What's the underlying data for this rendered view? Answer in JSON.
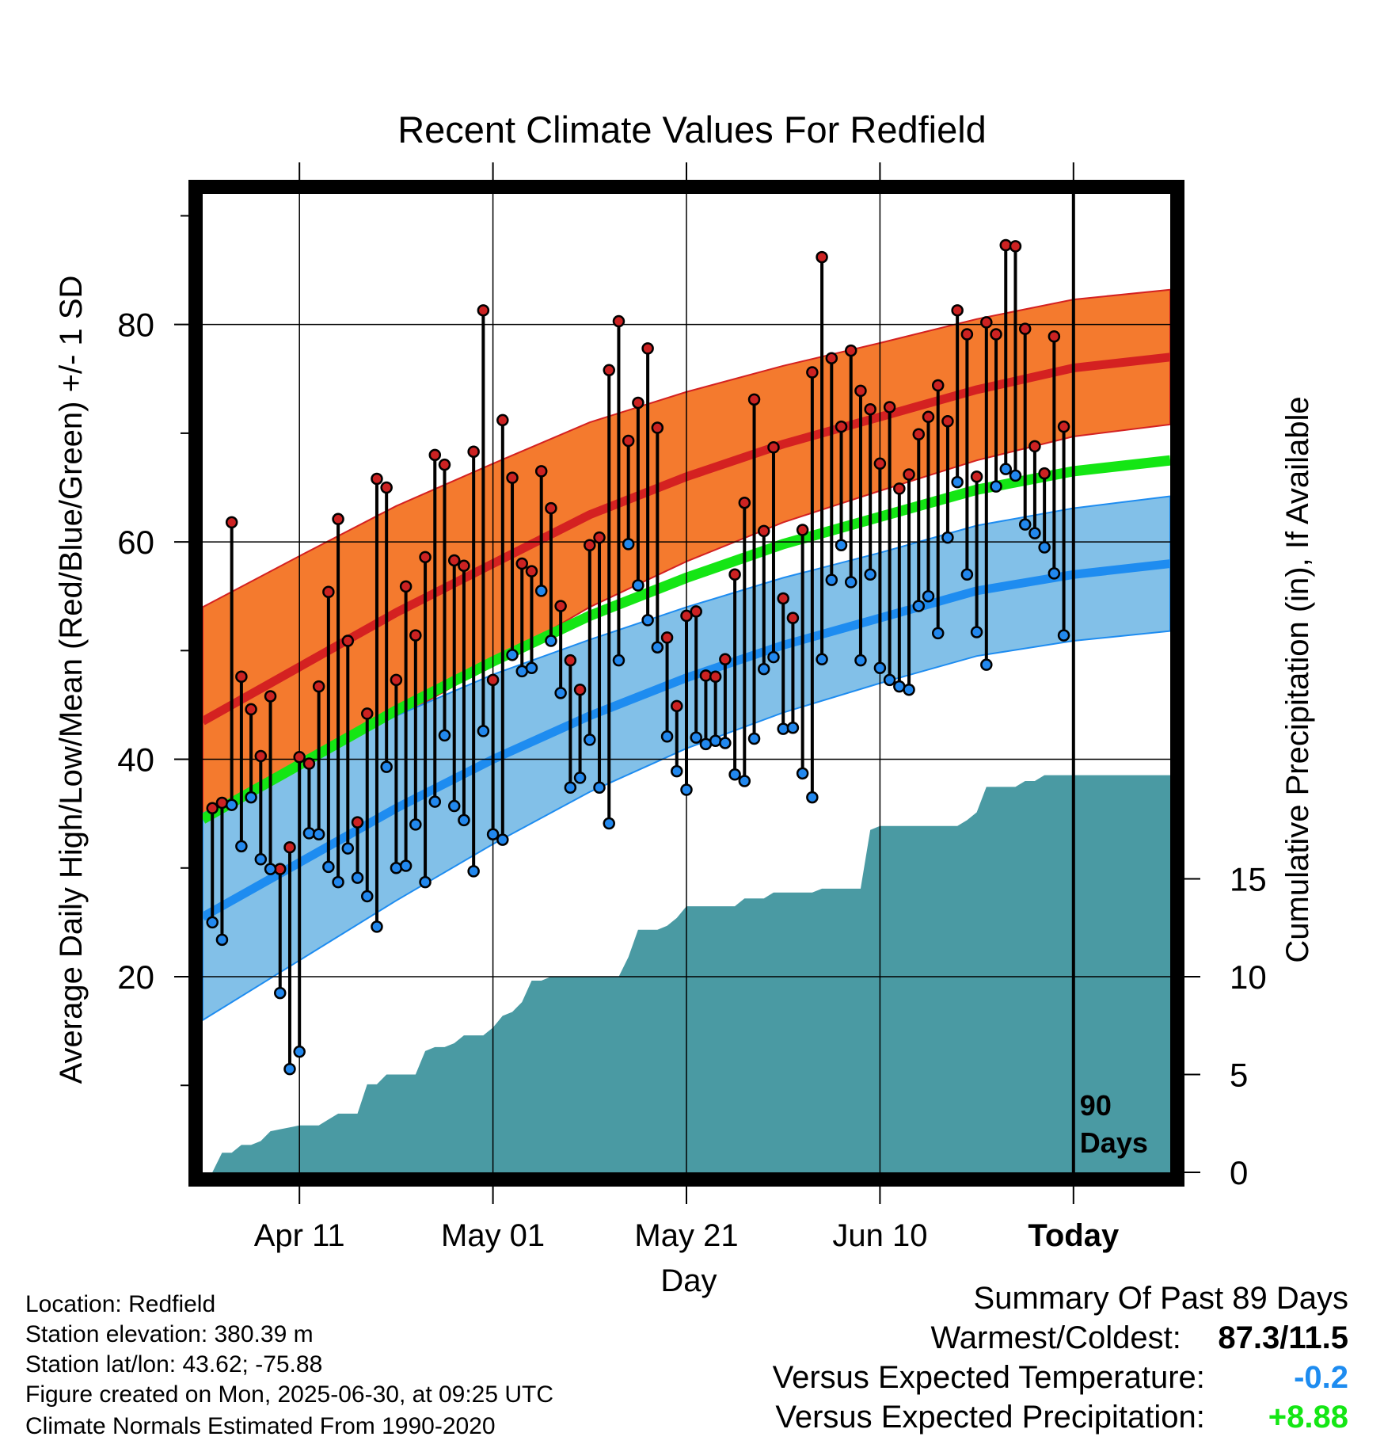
{
  "chart_data": {
    "type": "line",
    "title": "Recent Climate Values For Redfield",
    "xlabel": "Day",
    "ylabel": "Average Daily High/Low/Mean (Red/Blue/Green) +/- 1 SD",
    "y2label": "Cumulative Precipitation (in), If Available",
    "x_ticks": [
      {
        "day": 10,
        "label": "Apr 11"
      },
      {
        "day": 30,
        "label": "May 01"
      },
      {
        "day": 50,
        "label": "May 21"
      },
      {
        "day": 70,
        "label": "Jun 10"
      },
      {
        "day": 90,
        "label": "Today"
      }
    ],
    "y_ticks": [
      20,
      40,
      60,
      80
    ],
    "y2_ticks": [
      0,
      5,
      10,
      15
    ],
    "ylim": [
      2,
      92
    ],
    "y2lim": [
      0,
      50
    ],
    "xlim": [
      0,
      100
    ],
    "today_marker": {
      "day": 90,
      "label_line1": "90",
      "label_line2": "Days"
    },
    "colors": {
      "high_band": "#f47a2e",
      "high_line": "#d42121",
      "low_band": "#82c0e8",
      "low_line": "#1e8cf0",
      "mean_line": "#14e614",
      "precip": "#4a9aa3",
      "high_marker": "#cc2222",
      "low_marker": "#2288ee"
    },
    "normals": {
      "days": [
        0,
        10,
        20,
        30,
        40,
        50,
        60,
        70,
        80,
        90,
        100
      ],
      "high_mean": [
        43.5,
        48.5,
        53.5,
        58.0,
        62.5,
        66.0,
        69.0,
        71.5,
        74.0,
        76.0,
        77.0
      ],
      "high_sd": [
        10.5,
        10.2,
        9.8,
        9.2,
        8.5,
        7.8,
        7.2,
        6.8,
        6.5,
        6.3,
        6.2
      ],
      "low_mean": [
        25.5,
        30.5,
        35.5,
        40.0,
        44.0,
        47.5,
        50.5,
        53.0,
        55.5,
        57.0,
        58.0
      ],
      "low_sd": [
        9.5,
        9.0,
        8.5,
        7.8,
        7.0,
        6.5,
        6.2,
        6.0,
        6.0,
        6.1,
        6.2
      ],
      "mean": [
        34.5,
        39.5,
        44.5,
        49.0,
        53.2,
        56.7,
        59.8,
        62.3,
        64.8,
        66.5,
        67.5
      ]
    },
    "series": [
      {
        "name": "High",
        "values": [
          35.5,
          36.0,
          61.8,
          47.6,
          44.6,
          40.3,
          45.8,
          29.9,
          31.9,
          40.2,
          39.6,
          46.7,
          55.4,
          62.1,
          50.9,
          34.2,
          44.2,
          65.8,
          65.0,
          47.3,
          55.9,
          51.4,
          58.6,
          68.0,
          67.1,
          58.3,
          57.8,
          68.3,
          81.3,
          47.3,
          71.2,
          65.9,
          58.0,
          57.3,
          66.5,
          63.1,
          54.1,
          49.1,
          46.4,
          59.7,
          60.4,
          75.8,
          80.3,
          69.3,
          72.8,
          77.8,
          70.5,
          51.2,
          44.9,
          53.2,
          53.6,
          47.7,
          47.6,
          49.2,
          57.0,
          63.6,
          73.1,
          61.0,
          68.7,
          54.8,
          53.0,
          61.1,
          75.6,
          86.2,
          76.9,
          70.6,
          77.6,
          73.9,
          72.2,
          67.2,
          72.4,
          64.9,
          66.2,
          69.9,
          71.5,
          74.4,
          71.1,
          81.3,
          79.1,
          66.0,
          80.2,
          79.1,
          87.3,
          87.2,
          79.6,
          68.8,
          66.3,
          78.9,
          70.6
        ]
      },
      {
        "name": "Low",
        "values": [
          25.0,
          23.4,
          35.8,
          32.0,
          36.5,
          30.8,
          29.9,
          18.5,
          11.5,
          13.1,
          33.2,
          33.1,
          30.1,
          28.7,
          31.8,
          29.1,
          27.4,
          24.6,
          39.3,
          30.0,
          30.2,
          34.0,
          28.7,
          36.1,
          42.2,
          35.7,
          34.4,
          29.7,
          42.6,
          33.1,
          32.6,
          49.6,
          48.1,
          48.4,
          55.5,
          50.9,
          46.1,
          37.4,
          38.3,
          41.8,
          37.4,
          34.1,
          49.1,
          59.8,
          56.0,
          52.8,
          50.3,
          42.1,
          38.9,
          37.2,
          42.0,
          41.4,
          41.7,
          41.5,
          38.6,
          38.0,
          41.9,
          48.3,
          49.4,
          42.8,
          42.9,
          38.7,
          36.5,
          49.2,
          56.5,
          59.7,
          56.3,
          49.1,
          57.0,
          48.4,
          47.3,
          46.7,
          46.4,
          54.1,
          55.0,
          51.6,
          60.4,
          65.5,
          57.0,
          51.7,
          48.7,
          65.1,
          66.7,
          66.1,
          61.6,
          60.8,
          59.5,
          57.1,
          51.4
        ]
      }
    ],
    "precipitation": {
      "days": [
        0,
        1,
        2,
        3,
        4,
        5,
        6,
        7,
        8,
        9,
        10,
        11,
        12,
        13,
        14,
        15,
        16,
        17,
        18,
        19,
        20,
        21,
        22,
        23,
        24,
        25,
        26,
        27,
        28,
        29,
        30,
        31,
        32,
        33,
        34,
        35,
        36,
        37,
        38,
        39,
        40,
        41,
        42,
        43,
        44,
        45,
        46,
        47,
        48,
        49,
        50,
        51,
        52,
        53,
        54,
        55,
        56,
        57,
        58,
        59,
        60,
        61,
        62,
        63,
        64,
        65,
        66,
        67,
        68,
        69,
        70,
        71,
        72,
        73,
        74,
        75,
        76,
        77,
        78,
        79,
        80,
        81,
        82,
        83,
        84,
        85,
        86,
        87,
        88,
        89,
        90,
        91,
        92,
        93,
        94,
        95,
        96,
        97,
        98,
        99,
        100
      ],
      "values": [
        0.0,
        0.0,
        1.0,
        1.0,
        1.4,
        1.4,
        1.6,
        2.1,
        2.2,
        2.3,
        2.4,
        2.4,
        2.4,
        2.7,
        3.0,
        3.0,
        3.0,
        4.5,
        4.5,
        5.0,
        5.0,
        5.0,
        5.0,
        6.2,
        6.4,
        6.4,
        6.6,
        7.0,
        7.0,
        7.0,
        7.4,
        8.0,
        8.2,
        8.7,
        9.8,
        9.8,
        10.0,
        10.0,
        10.0,
        10.0,
        10.0,
        10.0,
        10.0,
        10.0,
        11.0,
        12.4,
        12.4,
        12.4,
        12.6,
        13.0,
        13.6,
        13.6,
        13.6,
        13.6,
        13.6,
        13.6,
        14.0,
        14.0,
        14.0,
        14.3,
        14.3,
        14.3,
        14.3,
        14.3,
        14.5,
        14.5,
        14.5,
        14.5,
        14.5,
        17.5,
        17.7,
        17.7,
        17.7,
        17.7,
        17.7,
        17.7,
        17.7,
        17.7,
        17.7,
        18.0,
        18.4,
        19.7,
        19.7,
        19.7,
        19.7,
        20.0,
        20.0,
        20.3,
        20.3,
        20.3,
        20.3,
        20.3,
        20.3,
        20.3,
        20.3,
        20.3,
        20.3,
        20.3,
        20.3,
        20.3,
        20.3
      ]
    }
  },
  "info": {
    "location": "Location: Redfield",
    "elevation": "Station elevation: 380.39 m",
    "latlon": "Station lat/lon: 43.62; -75.88",
    "created": "Figure created on Mon, 2025-06-30, at 09:25 UTC",
    "normals": "Climate Normals Estimated From 1990-2020"
  },
  "summary": {
    "title": "Summary Of Past 89 Days",
    "warm_label": "Warmest/Coldest:",
    "warm_value": "87.3/11.5",
    "temp_label": "Versus Expected Temperature:",
    "temp_value": "-0.2",
    "temp_color": "#1e8cf0",
    "precip_label": "Versus Expected Precipitation:",
    "precip_value": "+8.88",
    "precip_color": "#14e614"
  }
}
